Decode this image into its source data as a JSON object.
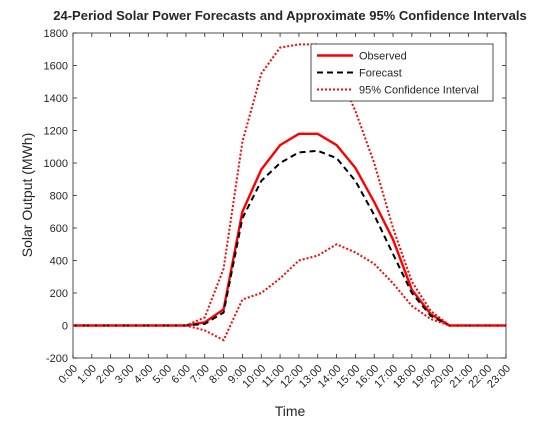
{
  "chart_data": {
    "type": "line",
    "title": "24-Period Solar Power Forecasts and Approximate 95% Confidence Intervals",
    "xlabel": "Time",
    "ylabel": "Solar Output (MWh)",
    "categories": [
      "0:00",
      "1:00",
      "2:00",
      "3:00",
      "4:00",
      "5:00",
      "6:00",
      "7:00",
      "8:00",
      "9:00",
      "10:00",
      "11:00",
      "12:00",
      "13:00",
      "14:00",
      "15:00",
      "16:00",
      "17:00",
      "18:00",
      "19:00",
      "20:00",
      "21:00",
      "22:00",
      "23:00"
    ],
    "ylim": [
      -200,
      1800
    ],
    "yticks": [
      -200,
      0,
      200,
      400,
      600,
      800,
      1000,
      1200,
      1400,
      1600,
      1800
    ],
    "grid": false,
    "legend_position": "top-right",
    "series": [
      {
        "name": "Observed",
        "color": "#ff0000",
        "style": "solid",
        "values": [
          0,
          0,
          0,
          0,
          0,
          0,
          0,
          20,
          100,
          700,
          960,
          1110,
          1180,
          1180,
          1110,
          970,
          760,
          530,
          220,
          70,
          0,
          0,
          0,
          0
        ]
      },
      {
        "name": "Forecast",
        "color": "#000000",
        "style": "dashed",
        "values": [
          0,
          0,
          0,
          0,
          0,
          0,
          0,
          10,
          80,
          660,
          890,
          1000,
          1065,
          1075,
          1030,
          890,
          680,
          440,
          200,
          60,
          0,
          0,
          0,
          0
        ]
      },
      {
        "name": "95% Confidence Interval",
        "color": "#ff0000",
        "style": "dotted",
        "values": [
          0,
          0,
          0,
          0,
          0,
          0,
          0,
          50,
          350,
          1130,
          1550,
          1710,
          1730,
          1730,
          1580,
          1320,
          1000,
          600,
          270,
          90,
          0,
          0,
          0,
          0
        ]
      },
      {
        "name": "95% Confidence Interval",
        "color": "#ff0000",
        "style": "dotted",
        "legend": false,
        "values": [
          0,
          0,
          0,
          0,
          0,
          0,
          0,
          -30,
          -90,
          160,
          200,
          290,
          400,
          430,
          500,
          450,
          380,
          260,
          120,
          40,
          0,
          0,
          0,
          0
        ]
      }
    ]
  }
}
